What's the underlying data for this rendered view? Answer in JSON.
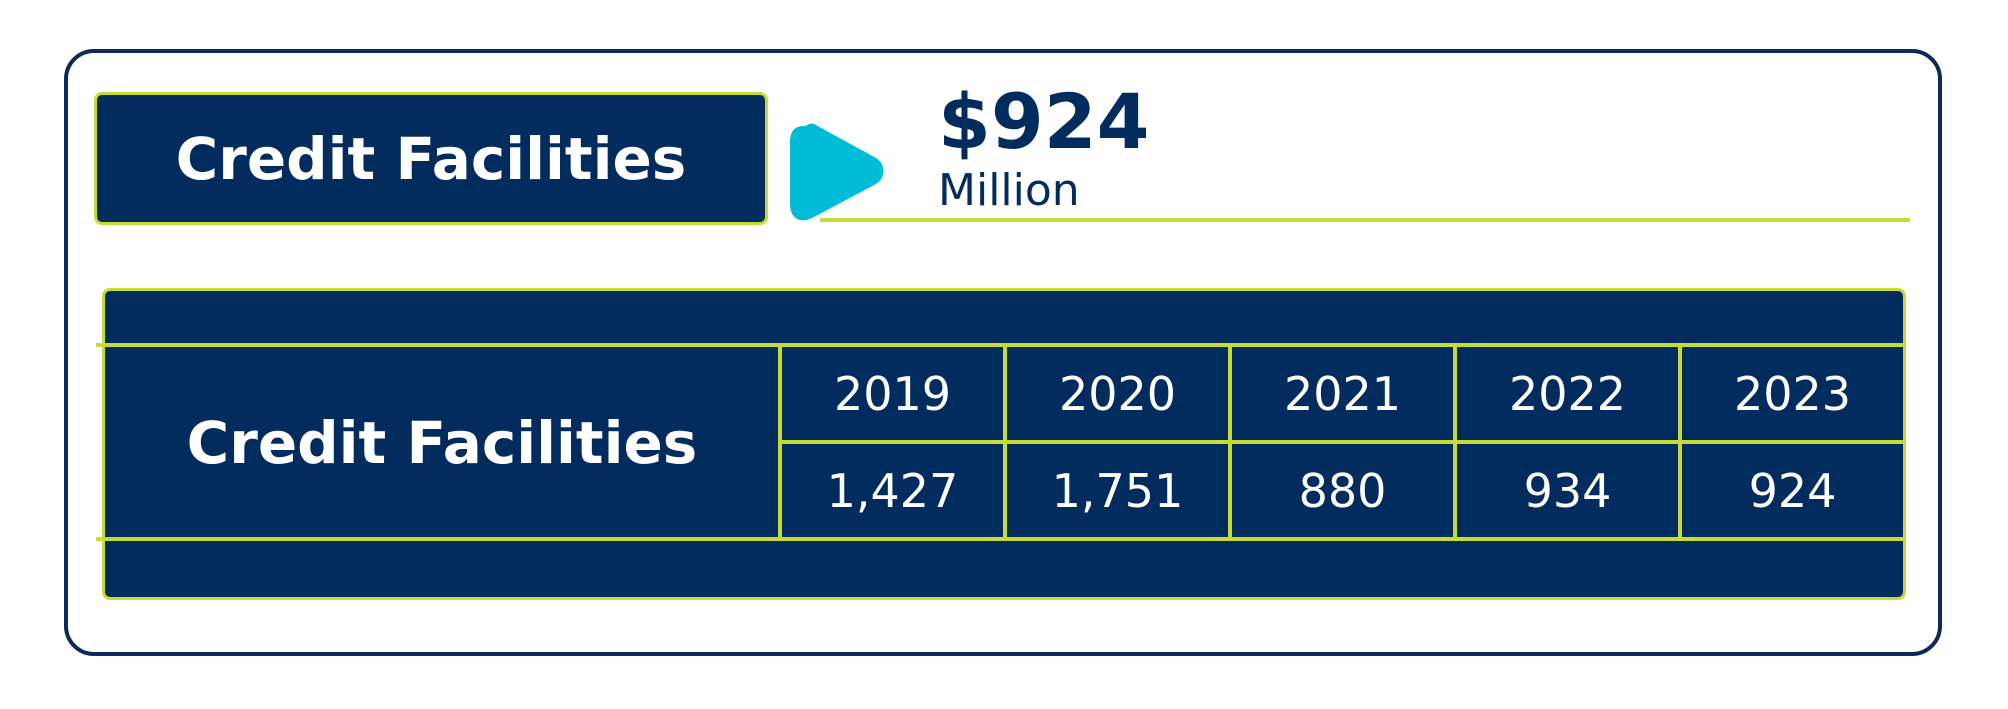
{
  "title": "Credit Facilities",
  "highlight": {
    "value": "$924",
    "unit": "Million"
  },
  "table": {
    "row_label": "Credit Facilities",
    "years": [
      "2019",
      "2020",
      "2021",
      "2022",
      "2023"
    ],
    "values": [
      "1,427",
      "1,751",
      "880",
      "934",
      "924"
    ]
  },
  "colors": {
    "navy": "#022b5e",
    "lime": "#c5dc32",
    "cyan": "#00bcd6"
  },
  "icons": {
    "highlight_marker": "play-triangle-icon"
  }
}
